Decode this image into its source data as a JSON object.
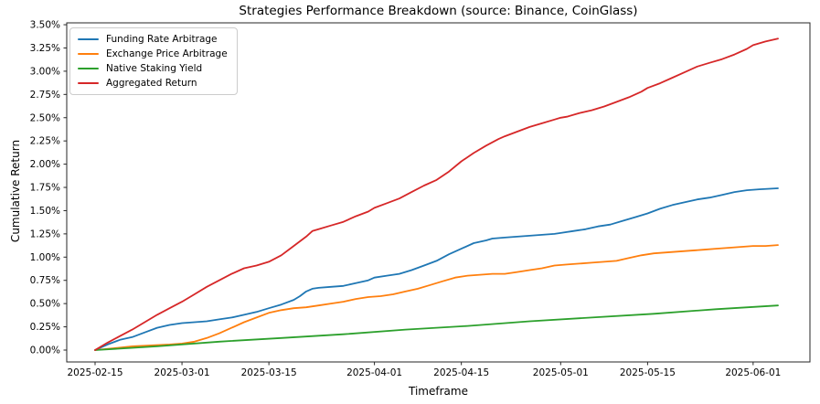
{
  "chart_data": {
    "type": "line",
    "title": "Strategies Performance Breakdown (source: Binance, CoinGlass)",
    "xlabel": "Timeframe",
    "ylabel": "Cumulative Return",
    "x_unit": "days since 2025-02-15",
    "x_start_date": "2025-02-15",
    "x_end_day": 110,
    "ylim": [
      -0.13,
      3.52
    ],
    "grid": false,
    "legend_position": "upper-left",
    "x_ticks": [
      {
        "label": "2025-02-15",
        "day": 0
      },
      {
        "label": "2025-03-01",
        "day": 14
      },
      {
        "label": "2025-03-15",
        "day": 28
      },
      {
        "label": "2025-04-01",
        "day": 45
      },
      {
        "label": "2025-04-15",
        "day": 59
      },
      {
        "label": "2025-05-01",
        "day": 75
      },
      {
        "label": "2025-05-15",
        "day": 89
      },
      {
        "label": "2025-06-01",
        "day": 106
      }
    ],
    "y_ticks": [
      {
        "label": "0.00%",
        "value": 0.0
      },
      {
        "label": "0.25%",
        "value": 0.25
      },
      {
        "label": "0.50%",
        "value": 0.5
      },
      {
        "label": "0.75%",
        "value": 0.75
      },
      {
        "label": "1.00%",
        "value": 1.0
      },
      {
        "label": "1.25%",
        "value": 1.25
      },
      {
        "label": "1.50%",
        "value": 1.5
      },
      {
        "label": "1.75%",
        "value": 1.75
      },
      {
        "label": "2.00%",
        "value": 2.0
      },
      {
        "label": "2.25%",
        "value": 2.25
      },
      {
        "label": "2.50%",
        "value": 2.5
      },
      {
        "label": "2.75%",
        "value": 2.75
      },
      {
        "label": "3.00%",
        "value": 3.0
      },
      {
        "label": "3.25%",
        "value": 3.25
      },
      {
        "label": "3.50%",
        "value": 3.5
      }
    ],
    "series": [
      {
        "name": "Funding Rate Arbitrage",
        "color": "#1f77b4",
        "final_value_pct": 1.74,
        "points": [
          [
            0,
            0
          ],
          [
            2,
            0.06
          ],
          [
            4,
            0.11
          ],
          [
            6,
            0.14
          ],
          [
            8,
            0.19
          ],
          [
            10,
            0.24
          ],
          [
            12,
            0.27
          ],
          [
            14,
            0.29
          ],
          [
            16,
            0.3
          ],
          [
            18,
            0.31
          ],
          [
            20,
            0.33
          ],
          [
            22,
            0.35
          ],
          [
            24,
            0.38
          ],
          [
            26,
            0.41
          ],
          [
            28,
            0.45
          ],
          [
            30,
            0.49
          ],
          [
            32,
            0.54
          ],
          [
            33,
            0.58
          ],
          [
            34,
            0.63
          ],
          [
            35,
            0.66
          ],
          [
            36,
            0.67
          ],
          [
            38,
            0.68
          ],
          [
            40,
            0.69
          ],
          [
            42,
            0.72
          ],
          [
            44,
            0.75
          ],
          [
            45,
            0.78
          ],
          [
            47,
            0.8
          ],
          [
            49,
            0.82
          ],
          [
            51,
            0.86
          ],
          [
            53,
            0.91
          ],
          [
            55,
            0.96
          ],
          [
            57,
            1.03
          ],
          [
            59,
            1.09
          ],
          [
            61,
            1.15
          ],
          [
            63,
            1.18
          ],
          [
            64,
            1.2
          ],
          [
            66,
            1.21
          ],
          [
            68,
            1.22
          ],
          [
            70,
            1.23
          ],
          [
            72,
            1.24
          ],
          [
            74,
            1.25
          ],
          [
            75,
            1.26
          ],
          [
            77,
            1.28
          ],
          [
            79,
            1.3
          ],
          [
            81,
            1.33
          ],
          [
            83,
            1.35
          ],
          [
            85,
            1.39
          ],
          [
            87,
            1.43
          ],
          [
            89,
            1.47
          ],
          [
            91,
            1.52
          ],
          [
            93,
            1.56
          ],
          [
            95,
            1.59
          ],
          [
            97,
            1.62
          ],
          [
            99,
            1.64
          ],
          [
            101,
            1.67
          ],
          [
            103,
            1.7
          ],
          [
            105,
            1.72
          ],
          [
            107,
            1.73
          ],
          [
            110,
            1.74
          ]
        ]
      },
      {
        "name": "Exchange Price Arbitrage",
        "color": "#ff7f0e",
        "final_value_pct": 1.13,
        "points": [
          [
            0,
            0
          ],
          [
            3,
            0.02
          ],
          [
            6,
            0.04
          ],
          [
            9,
            0.05
          ],
          [
            12,
            0.06
          ],
          [
            14,
            0.07
          ],
          [
            16,
            0.09
          ],
          [
            18,
            0.13
          ],
          [
            20,
            0.18
          ],
          [
            22,
            0.24
          ],
          [
            24,
            0.3
          ],
          [
            26,
            0.35
          ],
          [
            28,
            0.4
          ],
          [
            30,
            0.43
          ],
          [
            32,
            0.45
          ],
          [
            34,
            0.46
          ],
          [
            36,
            0.48
          ],
          [
            38,
            0.5
          ],
          [
            40,
            0.52
          ],
          [
            42,
            0.55
          ],
          [
            44,
            0.57
          ],
          [
            46,
            0.58
          ],
          [
            48,
            0.6
          ],
          [
            50,
            0.63
          ],
          [
            52,
            0.66
          ],
          [
            54,
            0.7
          ],
          [
            56,
            0.74
          ],
          [
            58,
            0.78
          ],
          [
            60,
            0.8
          ],
          [
            62,
            0.81
          ],
          [
            64,
            0.82
          ],
          [
            66,
            0.82
          ],
          [
            68,
            0.84
          ],
          [
            70,
            0.86
          ],
          [
            72,
            0.88
          ],
          [
            74,
            0.91
          ],
          [
            76,
            0.92
          ],
          [
            78,
            0.93
          ],
          [
            80,
            0.94
          ],
          [
            82,
            0.95
          ],
          [
            84,
            0.96
          ],
          [
            86,
            0.99
          ],
          [
            88,
            1.02
          ],
          [
            90,
            1.04
          ],
          [
            92,
            1.05
          ],
          [
            94,
            1.06
          ],
          [
            96,
            1.07
          ],
          [
            98,
            1.08
          ],
          [
            100,
            1.09
          ],
          [
            102,
            1.1
          ],
          [
            104,
            1.11
          ],
          [
            106,
            1.12
          ],
          [
            108,
            1.12
          ],
          [
            110,
            1.13
          ]
        ]
      },
      {
        "name": "Native Staking Yield",
        "color": "#2ca02c",
        "final_value_pct": 0.48,
        "points": [
          [
            0,
            0
          ],
          [
            10,
            0.04
          ],
          [
            20,
            0.09
          ],
          [
            30,
            0.13
          ],
          [
            40,
            0.17
          ],
          [
            50,
            0.22
          ],
          [
            60,
            0.26
          ],
          [
            70,
            0.31
          ],
          [
            80,
            0.35
          ],
          [
            90,
            0.39
          ],
          [
            100,
            0.44
          ],
          [
            110,
            0.48
          ]
        ]
      },
      {
        "name": "Aggregated Return",
        "color": "#d62728",
        "final_value_pct": 3.35,
        "points": [
          [
            0,
            0
          ],
          [
            2,
            0.08
          ],
          [
            4,
            0.15
          ],
          [
            6,
            0.22
          ],
          [
            8,
            0.3
          ],
          [
            10,
            0.38
          ],
          [
            12,
            0.45
          ],
          [
            14,
            0.52
          ],
          [
            16,
            0.6
          ],
          [
            18,
            0.68
          ],
          [
            20,
            0.75
          ],
          [
            22,
            0.82
          ],
          [
            24,
            0.88
          ],
          [
            26,
            0.91
          ],
          [
            28,
            0.95
          ],
          [
            30,
            1.02
          ],
          [
            32,
            1.12
          ],
          [
            34,
            1.22
          ],
          [
            35,
            1.28
          ],
          [
            36,
            1.3
          ],
          [
            38,
            1.34
          ],
          [
            40,
            1.38
          ],
          [
            42,
            1.44
          ],
          [
            44,
            1.49
          ],
          [
            45,
            1.53
          ],
          [
            47,
            1.58
          ],
          [
            49,
            1.63
          ],
          [
            51,
            1.7
          ],
          [
            53,
            1.77
          ],
          [
            55,
            1.83
          ],
          [
            57,
            1.92
          ],
          [
            59,
            2.03
          ],
          [
            61,
            2.12
          ],
          [
            63,
            2.2
          ],
          [
            65,
            2.27
          ],
          [
            66,
            2.3
          ],
          [
            68,
            2.35
          ],
          [
            70,
            2.4
          ],
          [
            72,
            2.44
          ],
          [
            74,
            2.48
          ],
          [
            75,
            2.5
          ],
          [
            76,
            2.51
          ],
          [
            78,
            2.55
          ],
          [
            80,
            2.58
          ],
          [
            82,
            2.62
          ],
          [
            84,
            2.67
          ],
          [
            86,
            2.72
          ],
          [
            88,
            2.78
          ],
          [
            89,
            2.82
          ],
          [
            91,
            2.87
          ],
          [
            93,
            2.93
          ],
          [
            95,
            2.99
          ],
          [
            97,
            3.05
          ],
          [
            99,
            3.09
          ],
          [
            101,
            3.13
          ],
          [
            103,
            3.18
          ],
          [
            105,
            3.24
          ],
          [
            106,
            3.28
          ],
          [
            108,
            3.32
          ],
          [
            110,
            3.35
          ]
        ]
      }
    ]
  }
}
